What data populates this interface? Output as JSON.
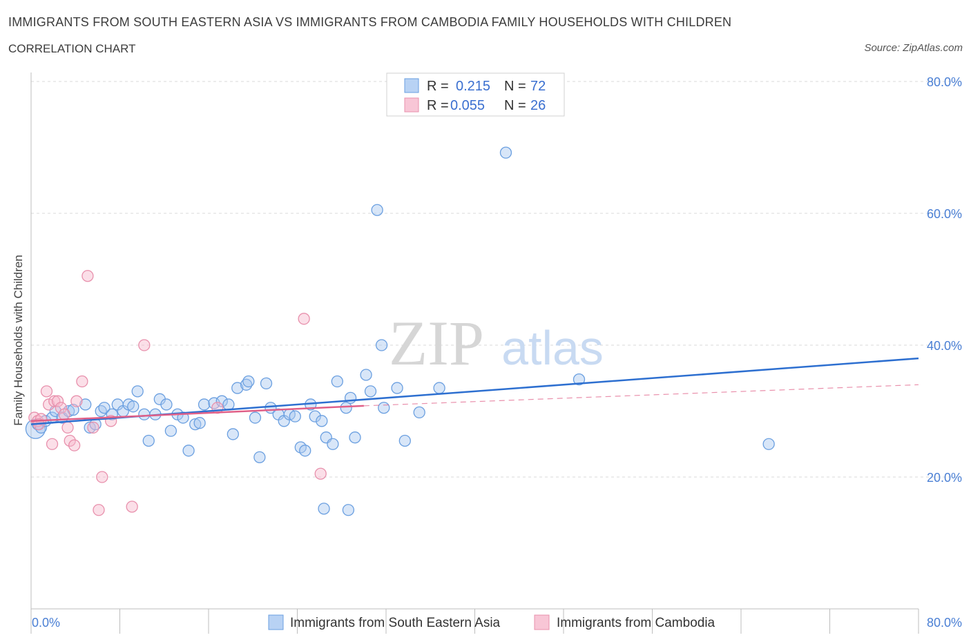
{
  "header": {
    "title": "IMMIGRANTS FROM SOUTH EASTERN ASIA VS IMMIGRANTS FROM CAMBODIA FAMILY HOUSEHOLDS WITH CHILDREN",
    "subtitle": "CORRELATION CHART",
    "source": "Source: ZipAtlas.com"
  },
  "watermark": {
    "zip": "ZIP",
    "atlas": "atlas"
  },
  "colors": {
    "blue_fill": "#a8c8f0",
    "blue_stroke": "#6a9fe0",
    "blue_line": "#2d6fd0",
    "pink_fill": "#f6b8cc",
    "pink_stroke": "#e890ac",
    "pink_line": "#e06088",
    "grid": "#d8d8d8",
    "tick_text": "#4a7fd4"
  },
  "stats_legend": {
    "r_label": "R =",
    "n_label": "N =",
    "blue": {
      "r": "0.215",
      "n": "72"
    },
    "pink": {
      "r": "0.055",
      "n": "26"
    }
  },
  "bottom_legend": {
    "blue_label": "Immigrants from South Eastern Asia",
    "pink_label": "Immigrants from Cambodia"
  },
  "chart_data": {
    "type": "scatter",
    "title": "IMMIGRANTS FROM SOUTH EASTERN ASIA VS IMMIGRANTS FROM CAMBODIA FAMILY HOUSEHOLDS WITH CHILDREN",
    "xlabel": "",
    "ylabel": "Family Households with Children",
    "xlim": [
      0,
      80
    ],
    "ylim": [
      0,
      80
    ],
    "x_tick_labels": [
      "0.0%",
      "80.0%"
    ],
    "y_ticks": [
      20,
      40,
      60,
      80
    ],
    "y_tick_labels": [
      "20.0%",
      "40.0%",
      "60.0%",
      "80.0%"
    ],
    "grid": true,
    "legend_position": "top-center",
    "series": [
      {
        "name": "Immigrants from South Eastern Asia",
        "color": "#6a9fe0",
        "trend": {
          "x": [
            0,
            80
          ],
          "y": [
            28.0,
            38.0
          ],
          "style": "solid"
        },
        "points": [
          [
            0.4,
            27.3
          ],
          [
            0.6,
            28.0
          ],
          [
            0.9,
            27.5
          ],
          [
            1.3,
            28.5
          ],
          [
            1.9,
            29.0
          ],
          [
            2.2,
            30.0
          ],
          [
            2.8,
            29.0
          ],
          [
            3.4,
            30.0
          ],
          [
            3.8,
            30.2
          ],
          [
            4.9,
            31.0
          ],
          [
            5.3,
            27.5
          ],
          [
            5.8,
            28.0
          ],
          [
            6.3,
            30.0
          ],
          [
            6.6,
            30.5
          ],
          [
            7.3,
            29.5
          ],
          [
            7.8,
            31.0
          ],
          [
            8.3,
            30.0
          ],
          [
            8.8,
            31.0
          ],
          [
            9.2,
            30.7
          ],
          [
            9.6,
            33.0
          ],
          [
            10.2,
            29.5
          ],
          [
            10.6,
            25.5
          ],
          [
            11.2,
            29.5
          ],
          [
            11.6,
            31.8
          ],
          [
            12.2,
            31.0
          ],
          [
            12.6,
            27.0
          ],
          [
            13.2,
            29.5
          ],
          [
            13.7,
            29.0
          ],
          [
            14.2,
            24.0
          ],
          [
            14.8,
            28.0
          ],
          [
            15.2,
            28.2
          ],
          [
            15.6,
            31.0
          ],
          [
            16.5,
            31.2
          ],
          [
            17.2,
            31.5
          ],
          [
            17.8,
            31.0
          ],
          [
            18.2,
            26.5
          ],
          [
            18.6,
            33.5
          ],
          [
            19.4,
            34.0
          ],
          [
            19.6,
            34.5
          ],
          [
            20.2,
            29.0
          ],
          [
            20.6,
            23.0
          ],
          [
            21.2,
            34.2
          ],
          [
            21.6,
            30.5
          ],
          [
            22.3,
            29.5
          ],
          [
            22.8,
            28.5
          ],
          [
            23.3,
            29.5
          ],
          [
            23.8,
            29.2
          ],
          [
            24.3,
            24.5
          ],
          [
            24.7,
            24.0
          ],
          [
            25.2,
            31.0
          ],
          [
            25.6,
            29.2
          ],
          [
            26.2,
            28.5
          ],
          [
            26.6,
            26.0
          ],
          [
            27.2,
            25.0
          ],
          [
            27.6,
            34.5
          ],
          [
            28.4,
            30.5
          ],
          [
            28.8,
            32.0
          ],
          [
            29.2,
            26.0
          ],
          [
            30.2,
            35.5
          ],
          [
            30.6,
            33.0
          ],
          [
            31.2,
            60.5
          ],
          [
            31.6,
            40.0
          ],
          [
            33.0,
            33.5
          ],
          [
            33.7,
            25.5
          ],
          [
            35.0,
            29.8
          ],
          [
            36.8,
            33.5
          ],
          [
            42.8,
            69.2
          ],
          [
            49.4,
            34.8
          ],
          [
            66.5,
            25.0
          ],
          [
            26.4,
            15.2
          ],
          [
            28.6,
            15.0
          ],
          [
            31.8,
            30.5
          ]
        ]
      },
      {
        "name": "Immigrants from Cambodia",
        "color": "#e890ac",
        "trend": {
          "x": [
            0,
            30
          ],
          "y": [
            28.5,
            30.8
          ],
          "style": "solid",
          "extended_to": [
            80,
            34.0
          ]
        },
        "points": [
          [
            0.3,
            29.0
          ],
          [
            0.6,
            28.5
          ],
          [
            0.9,
            28.8
          ],
          [
            1.4,
            33.0
          ],
          [
            1.6,
            31.0
          ],
          [
            1.9,
            25.0
          ],
          [
            2.1,
            31.5
          ],
          [
            2.4,
            31.5
          ],
          [
            2.7,
            30.5
          ],
          [
            3.0,
            29.5
          ],
          [
            3.3,
            27.5
          ],
          [
            3.5,
            25.5
          ],
          [
            3.9,
            24.8
          ],
          [
            4.1,
            31.5
          ],
          [
            4.6,
            34.5
          ],
          [
            5.1,
            50.5
          ],
          [
            5.6,
            27.5
          ],
          [
            6.1,
            15.0
          ],
          [
            6.4,
            20.0
          ],
          [
            7.2,
            28.5
          ],
          [
            9.1,
            15.5
          ],
          [
            10.2,
            40.0
          ],
          [
            16.8,
            30.5
          ],
          [
            24.6,
            44.0
          ],
          [
            26.1,
            20.5
          ],
          [
            0.7,
            28.0
          ]
        ]
      }
    ]
  }
}
